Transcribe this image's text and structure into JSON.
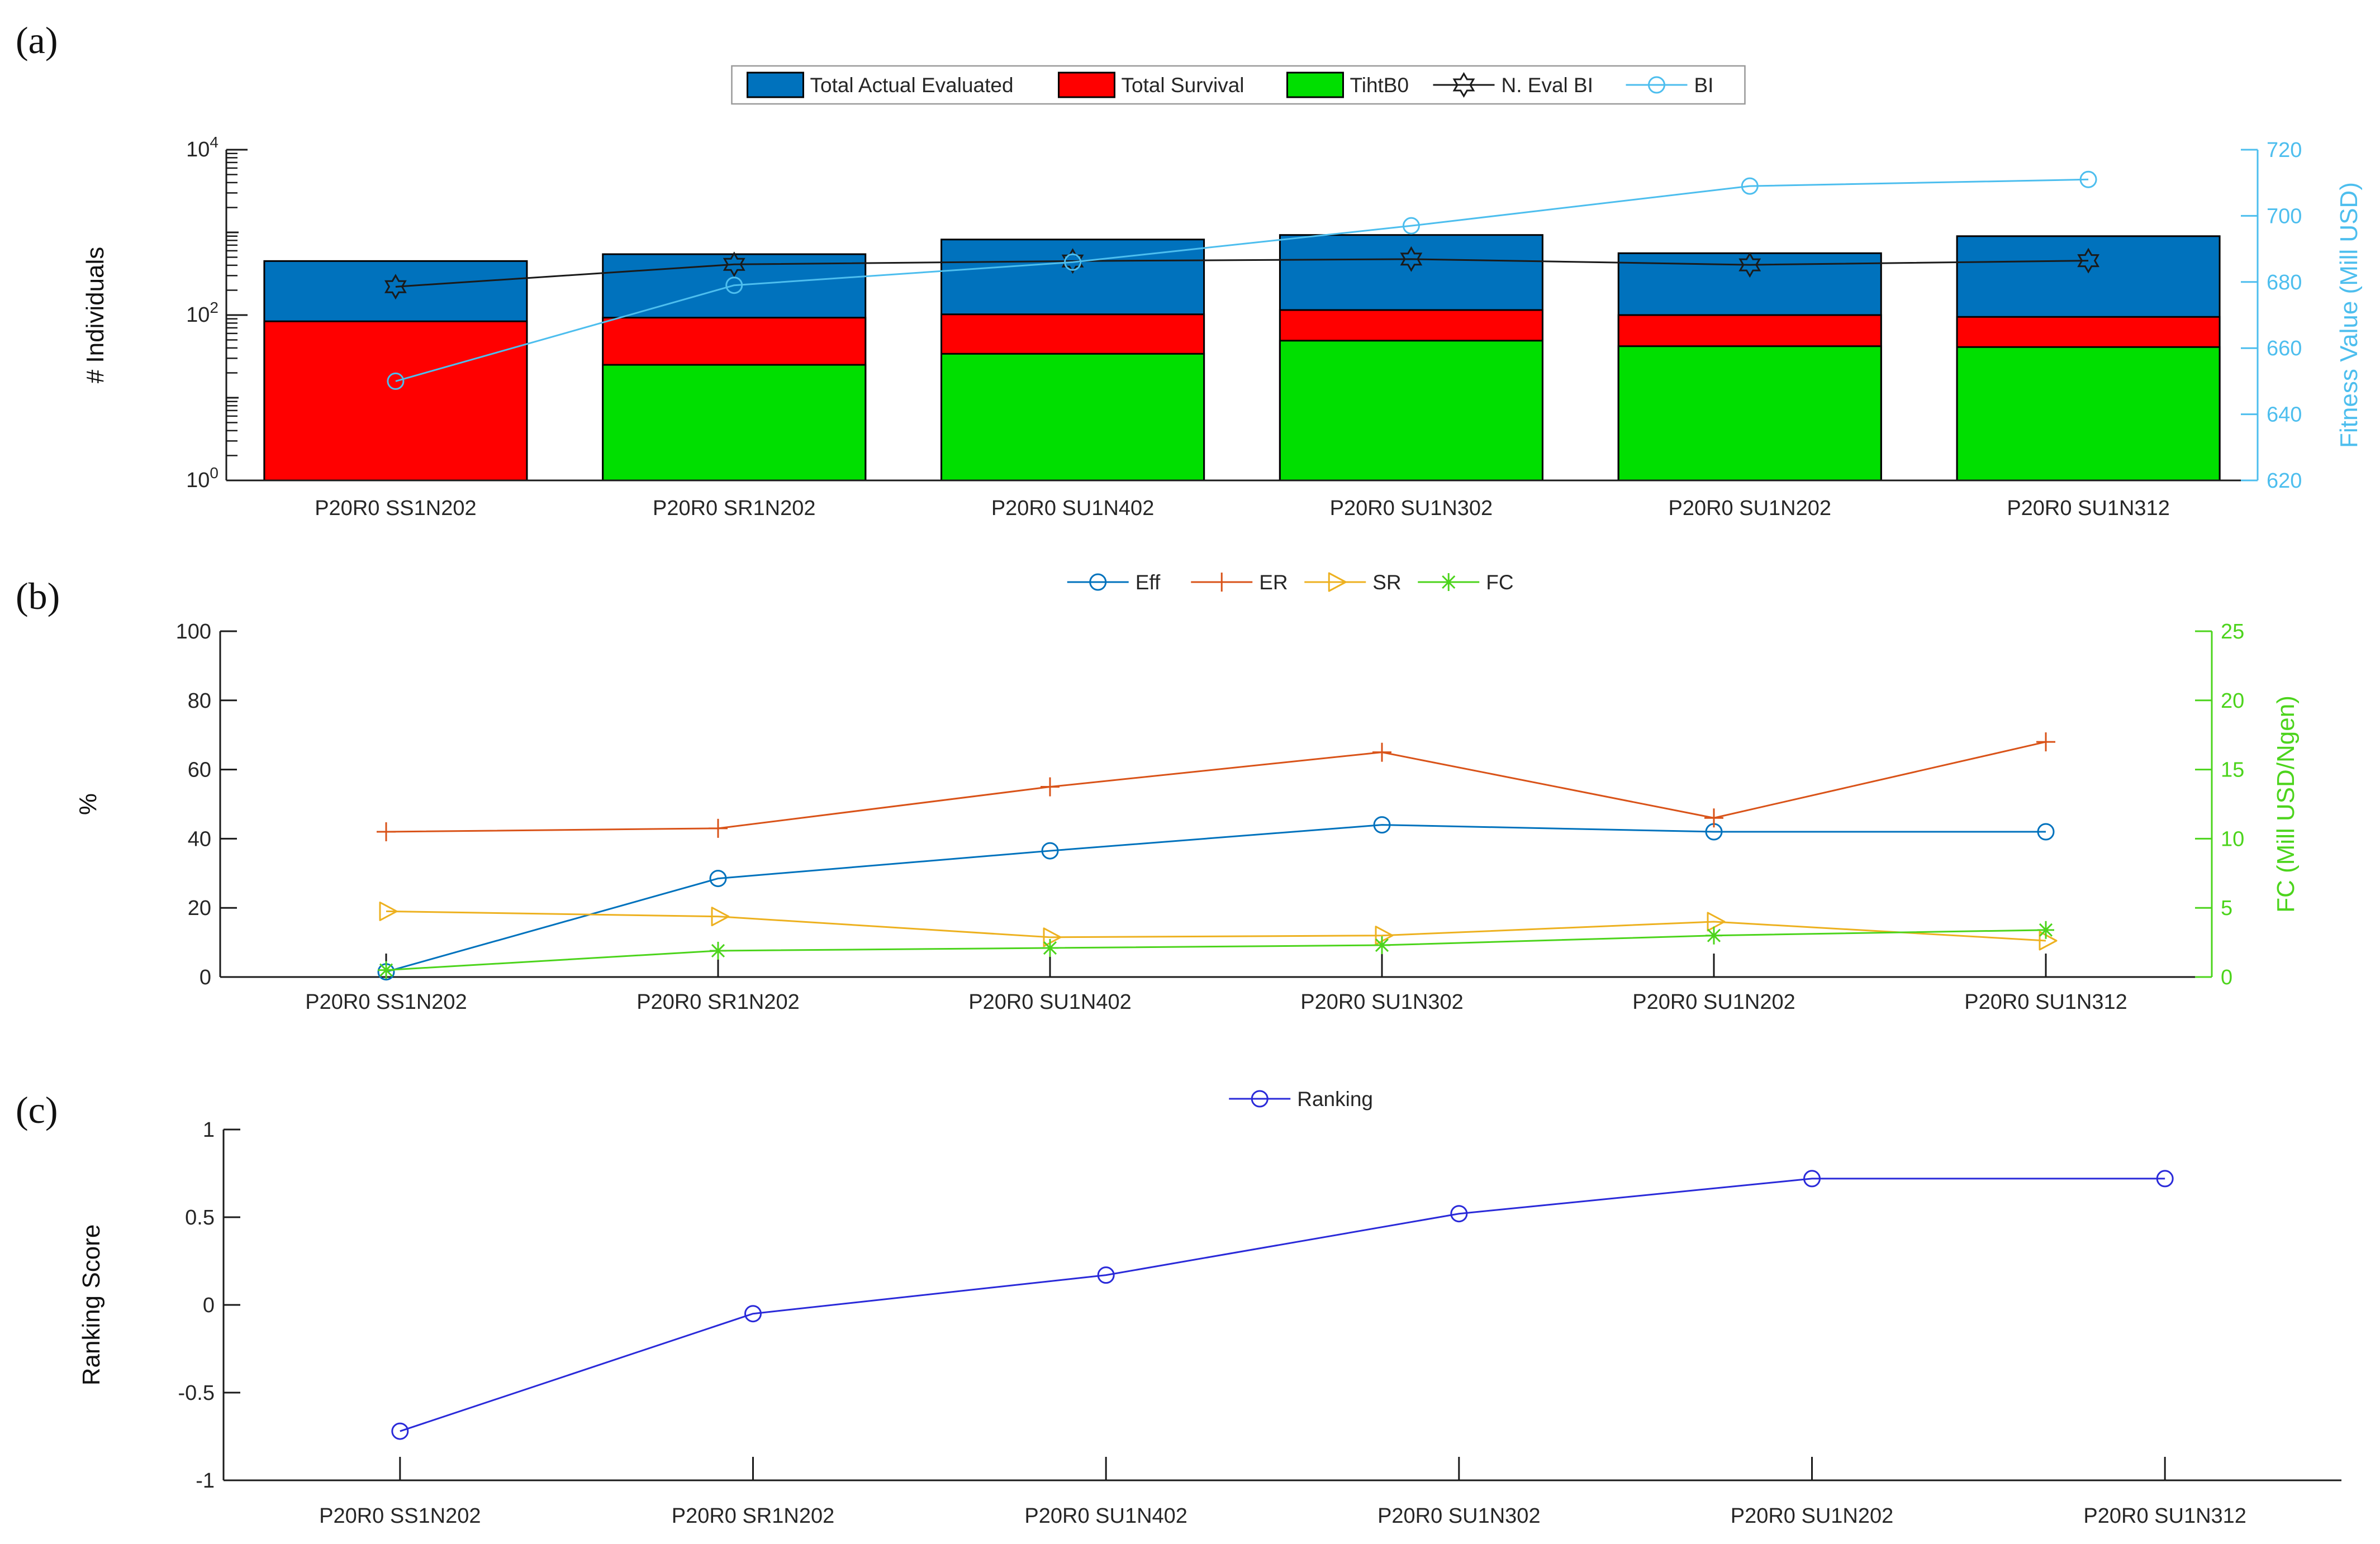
{
  "figure": {
    "background": "#ffffff",
    "panel_labels": {
      "a": "(a)",
      "b": "(b)",
      "c": "(c)"
    }
  },
  "categories": [
    "P20R0 SS1N202",
    "P20R0 SR1N202",
    "P20R0 SU1N402",
    "P20R0 SU1N302",
    "P20R0 SU1N202",
    "P20R0 SU1N312"
  ],
  "colors": {
    "bar_blue": "#0072BD",
    "bar_red": "#FF0000",
    "bar_green": "#00DF00",
    "line_black": "#1a1a1a",
    "line_lightblue": "#4DBEEE",
    "eff_blue": "#0072BD",
    "er_orange": "#D95319",
    "sr_gold": "#EDB120",
    "fc_green": "#4CD41C",
    "ranking_blue": "#2A2AD9",
    "axis_text": "#262626",
    "legend_border": "#999999"
  },
  "chart_data": [
    {
      "id": "a",
      "type": "bar",
      "subtype": "overlaid-bars-with-lines",
      "categories": [
        "P20R0 SS1N202",
        "P20R0 SR1N202",
        "P20R0 SU1N402",
        "P20R0 SU1N302",
        "P20R0 SU1N202",
        "P20R0 SU1N312"
      ],
      "left_axis": {
        "label": "# Individuals",
        "scale": "log",
        "min": 1,
        "max": 10000,
        "tick_labels": [
          "10^0",
          "10^2",
          "10^4"
        ]
      },
      "right_axis": {
        "label": "Fitness Value (Mill USD)",
        "min": 620,
        "max": 720,
        "tick_step": 20,
        "tick_labels": [
          "620",
          "640",
          "660",
          "680",
          "700",
          "720"
        ]
      },
      "bar_series": [
        {
          "name": "Total Actual Evaluated",
          "color_key": "bar_blue",
          "values": [
            450,
            545,
            820,
            930,
            560,
            900
          ]
        },
        {
          "name": "Total Survival",
          "color_key": "bar_red",
          "values": [
            84,
            93,
            102,
            115,
            100,
            95
          ]
        },
        {
          "name": "TihtB0",
          "color_key": "bar_green",
          "values": [
            1,
            25,
            34,
            49,
            42,
            41
          ]
        }
      ],
      "line_series": [
        {
          "name": "N. Eval BI",
          "axis": "left",
          "marker": "hexagram",
          "color_key": "line_black",
          "values": [
            220,
            410,
            450,
            475,
            405,
            455
          ]
        },
        {
          "name": "BI",
          "axis": "right",
          "marker": "circle",
          "color_key": "line_lightblue",
          "values": [
            650,
            679,
            686,
            697,
            709,
            711
          ]
        }
      ],
      "legend_position": "top-center-boxed"
    },
    {
      "id": "b",
      "type": "line",
      "categories": [
        "P20R0 SS1N202",
        "P20R0 SR1N202",
        "P20R0 SU1N402",
        "P20R0 SU1N302",
        "P20R0 SU1N202",
        "P20R0 SU1N312"
      ],
      "left_axis": {
        "label": "%",
        "min": 0,
        "max": 100,
        "tick_step": 20,
        "tick_labels": [
          "0",
          "20",
          "40",
          "60",
          "80",
          "100"
        ]
      },
      "right_axis": {
        "label": "FC (Mill USD/Ngen)",
        "min": 0,
        "max": 25,
        "tick_step": 5,
        "tick_labels": [
          "0",
          "5",
          "10",
          "15",
          "20",
          "25"
        ]
      },
      "line_series": [
        {
          "name": "Eff",
          "axis": "left",
          "marker": "circle",
          "color_key": "eff_blue",
          "values": [
            1.5,
            28.5,
            36.5,
            44,
            42,
            42
          ]
        },
        {
          "name": "ER",
          "axis": "left",
          "marker": "plus",
          "color_key": "er_orange",
          "values": [
            42,
            43,
            55,
            65,
            46,
            68
          ]
        },
        {
          "name": "SR",
          "axis": "left",
          "marker": "triangle-right",
          "color_key": "sr_gold",
          "values": [
            19,
            17.5,
            11.5,
            12,
            16,
            10.5
          ]
        },
        {
          "name": "FC",
          "axis": "right",
          "marker": "asterisk",
          "color_key": "fc_green",
          "values": [
            0.5,
            1.9,
            2.1,
            2.3,
            3.0,
            3.4
          ]
        }
      ],
      "legend_position": "top-center"
    },
    {
      "id": "c",
      "type": "line",
      "categories": [
        "P20R0 SS1N202",
        "P20R0 SR1N202",
        "P20R0 SU1N402",
        "P20R0 SU1N302",
        "P20R0 SU1N202",
        "P20R0 SU1N312"
      ],
      "left_axis": {
        "label": "Ranking Score",
        "min": -1,
        "max": 1,
        "tick_step": 0.5,
        "tick_labels": [
          "-1",
          "-0.5",
          "0",
          "0.5",
          "1"
        ]
      },
      "line_series": [
        {
          "name": "Ranking",
          "axis": "left",
          "marker": "circle",
          "color_key": "ranking_blue",
          "values": [
            -0.72,
            -0.05,
            0.17,
            0.52,
            0.72,
            0.72
          ]
        }
      ],
      "legend_position": "top-center"
    }
  ]
}
